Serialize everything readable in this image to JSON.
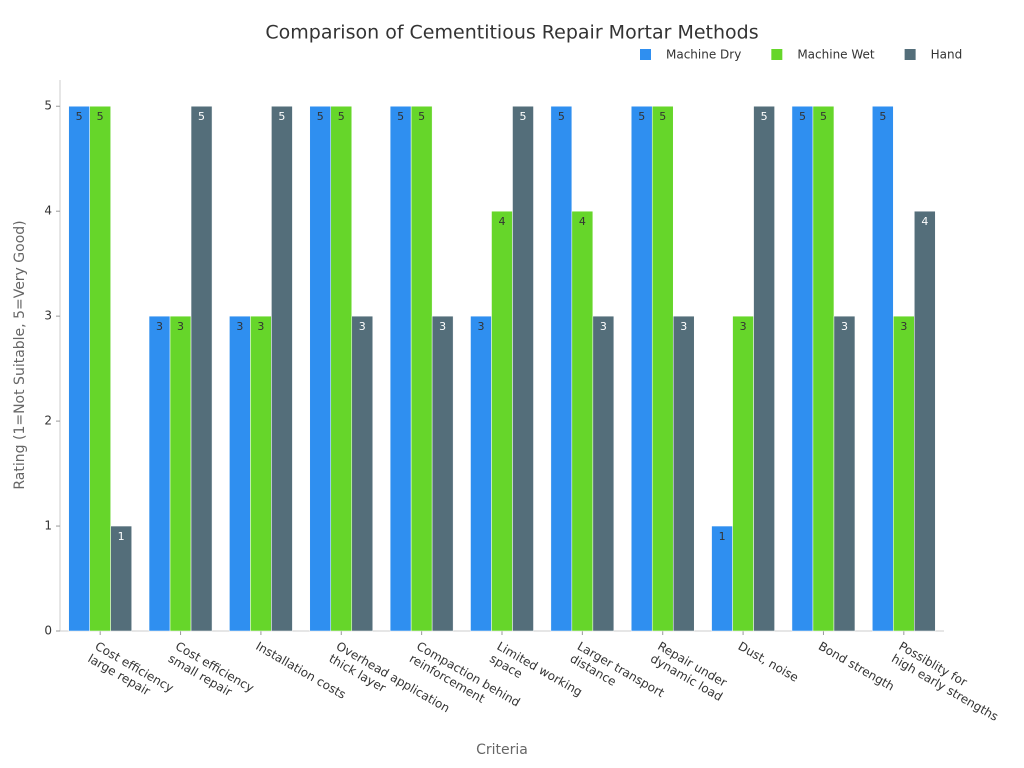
{
  "chart_data": {
    "type": "bar",
    "title": "Comparison of Cementitious Repair Mortar Methods",
    "x_label": "Criteria",
    "y_label": "Rating (1=Not Suitable, 5=Very Good)",
    "categories": [
      "Cost efficiency\nlarge repair",
      "Cost efficiency\nsmall repair",
      "Installation costs",
      "Overhead application\nthick layer",
      "Compaction behind\nreinforcement",
      "Limited working\nspace",
      "Larger transport\ndistance",
      "Repair under\ndynamic load",
      "Dust, noise",
      "Bond strength",
      "Possiblity for\nhigh early strengths"
    ],
    "series": [
      {
        "name": "Machine Dry",
        "color": "#2f8ff0",
        "values": [
          5,
          3,
          3,
          5,
          5,
          3,
          5,
          5,
          1,
          5,
          5
        ]
      },
      {
        "name": "Machine Wet",
        "color": "#66d62a",
        "values": [
          5,
          3,
          3,
          5,
          5,
          4,
          4,
          5,
          3,
          5,
          3
        ]
      },
      {
        "name": "Hand",
        "color": "#546e7a",
        "values": [
          1,
          5,
          5,
          3,
          3,
          5,
          3,
          3,
          5,
          3,
          4
        ]
      }
    ],
    "ylim": [
      0,
      5.25
    ],
    "yticks": [
      0,
      1,
      2,
      3,
      4,
      5
    ],
    "grid": false,
    "legend": "top-right"
  }
}
